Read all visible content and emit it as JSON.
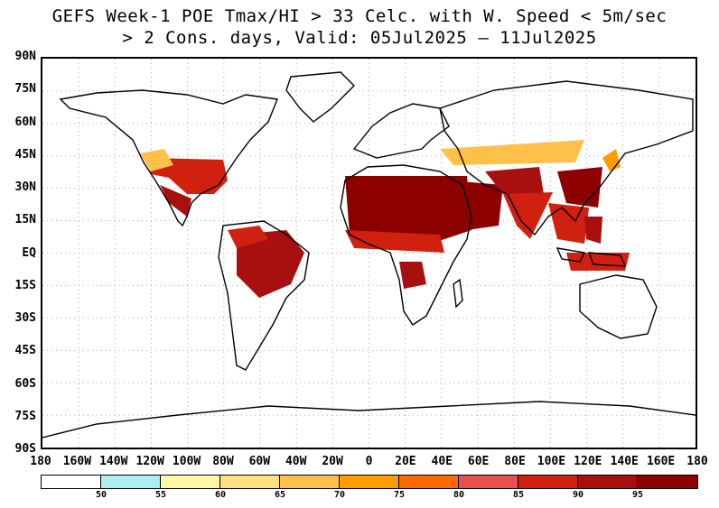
{
  "title": {
    "line1": "GEFS Week-1 POE Tmax/HI > 33 Celc. with W. Speed < 5m/sec",
    "line2": "> 2 Cons. days, Valid: 05Jul2025 – 11Jul2025"
  },
  "axes": {
    "lat_labels": [
      "90N",
      "75N",
      "60N",
      "45N",
      "30N",
      "15N",
      "EQ",
      "15S",
      "30S",
      "45S",
      "60S",
      "75S",
      "90S"
    ],
    "lon_labels": [
      "180",
      "160W",
      "140W",
      "120W",
      "100W",
      "80W",
      "60W",
      "40W",
      "20W",
      "0",
      "20E",
      "40E",
      "60E",
      "80E",
      "100E",
      "120E",
      "140E",
      "160E",
      "180"
    ],
    "grid": true
  },
  "colorbar": {
    "labels": [
      "50",
      "55",
      "60",
      "65",
      "70",
      "75",
      "80",
      "85",
      "90",
      "95"
    ],
    "colors": [
      "#ffffff",
      "#aeeef0",
      "#fff6a8",
      "#ffe080",
      "#ffc04a",
      "#ff9c00",
      "#ff6a00",
      "#e85050",
      "#d02010",
      "#a81010",
      "#8c0000"
    ]
  },
  "colors": {
    "high": "#8c0000",
    "mid": "#d02010",
    "low": "#ff9c00",
    "lowest": "#ffe080"
  }
}
